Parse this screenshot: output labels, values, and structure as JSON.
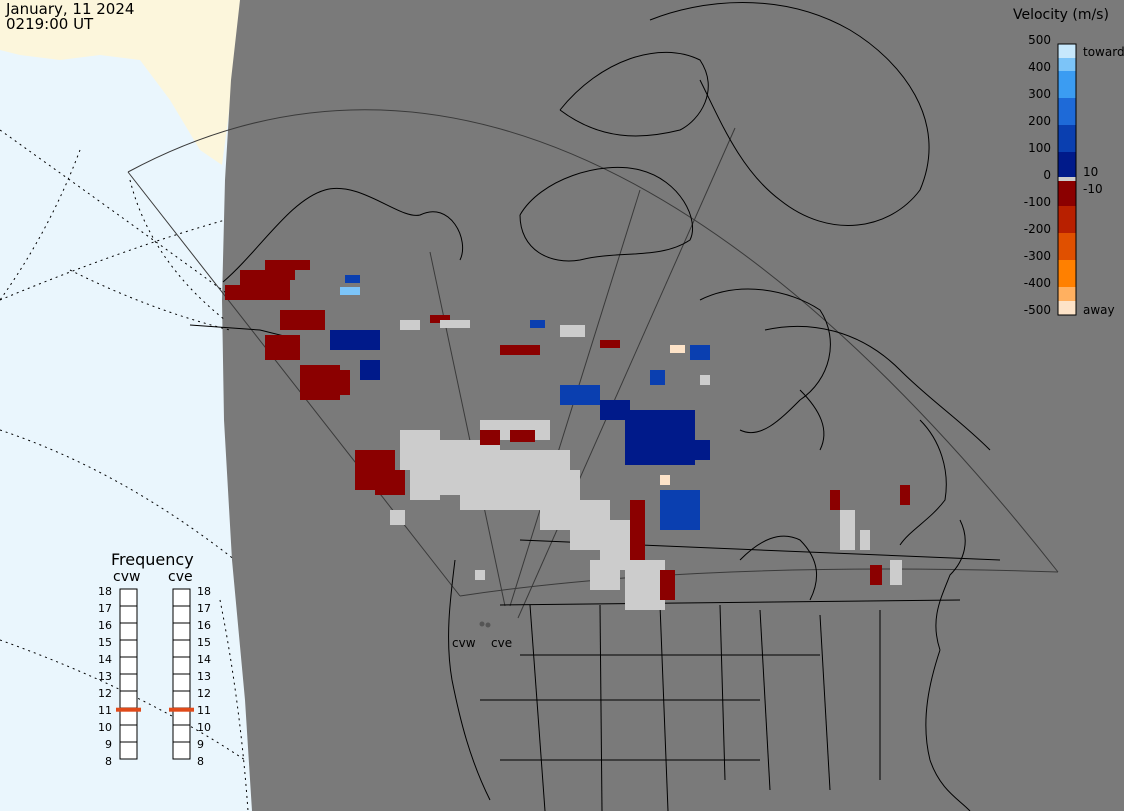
{
  "header": {
    "date": "January, 11 2024",
    "time": "0219:00 UT"
  },
  "velocity_legend": {
    "title": "Velocity (m/s)",
    "ticks": [
      "500",
      "400",
      "300",
      "200",
      "100",
      "0",
      "-100",
      "-200",
      "-300",
      "-400",
      "-500"
    ],
    "toward_label": "toward",
    "away_label": "away",
    "pos_threshold": "10",
    "neg_threshold": "-10",
    "colors": [
      "#fde3c8",
      "#ffb060",
      "#ff8000",
      "#e05000",
      "#b82000",
      "#8b0000",
      "#cccccc",
      "#001a8a",
      "#0a3fb0",
      "#1e6ad8",
      "#3b9cf2",
      "#7cc4f8",
      "#c7e8fc"
    ]
  },
  "frequency_panel": {
    "title": "Frequency",
    "radars": [
      "cvw",
      "cve"
    ],
    "scale": [
      "18",
      "17",
      "16",
      "15",
      "14",
      "13",
      "12",
      "11",
      "10",
      "9",
      "8"
    ],
    "values_mhz": {
      "cvw": 10.9,
      "cve": 10.9
    },
    "marker_color": "#e04a1a"
  },
  "sites": {
    "cvw_label": "cvw",
    "cve_label": "cve"
  },
  "map_colors": {
    "land": "#7a7a7a",
    "ocean": "#eaf6fd",
    "sea_ice": "#fcf6dc",
    "coast": "#000000",
    "fov": "#3a3a3a",
    "ground_scatter": "#cccccc"
  }
}
